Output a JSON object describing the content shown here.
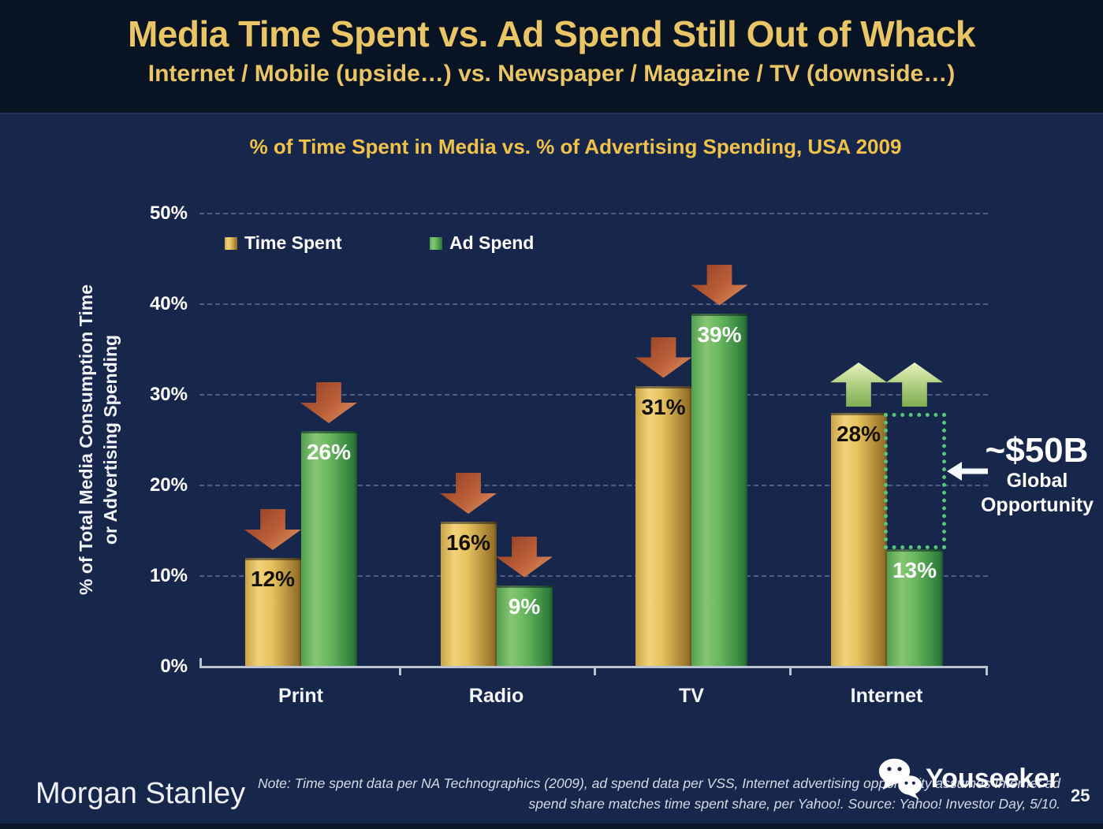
{
  "slide": {
    "title": "Media Time Spent vs. Ad Spend Still Out of Whack",
    "subtitle": "Internet / Mobile (upside…) vs. Newspaper / Magazine / TV (downside…)"
  },
  "footer": {
    "brand": "Morgan Stanley",
    "note_line1": "Note: Time spent data per NA Technographics (2009), ad spend data per VSS, Internet advertising opportunity assumes Internet ad",
    "note_line2": "spend share matches time spent share, per Yahoo!. Source: Yahoo! Investor Day, 5/10.",
    "watermark": "Youseeker",
    "page_number": "25"
  },
  "chart_data": {
    "type": "bar",
    "title": "% of Time Spent in Media vs. % of Advertising Spending, USA 2009",
    "ylabel_line1": "% of Total Media Consumption Time",
    "ylabel_line2": "or Advertising Spending",
    "categories": [
      "Print",
      "Radio",
      "TV",
      "Internet"
    ],
    "series": [
      {
        "name": "Time Spent",
        "color_key": "gold",
        "values": [
          12,
          16,
          31,
          28
        ]
      },
      {
        "name": "Ad Spend",
        "color_key": "green",
        "values": [
          26,
          9,
          39,
          13
        ]
      }
    ],
    "value_label_suffix": "%",
    "yticks": [
      0,
      10,
      20,
      30,
      40,
      50
    ],
    "ytick_suffix": "%",
    "ylim": [
      0,
      50
    ],
    "grid": "dashed-horizontal",
    "legend_position": "top-left-inside",
    "trend_arrows": [
      "down",
      "down",
      "down",
      "up"
    ],
    "annotation": {
      "value_label": "~$50B",
      "caption_line1": "Global",
      "caption_line2": "Opportunity",
      "box_category": "Internet",
      "box_from_percent": 13,
      "box_to_percent": 28
    }
  },
  "colors": {
    "slide_bg": "#17264b",
    "title_band_bg": "#081423",
    "title_text": "#e9c566",
    "chart_title_text": "#f0c24a",
    "gold_bar": "#e3bb52",
    "green_bar": "#55a853",
    "down_arrow": "#c46a3c",
    "up_arrow": "#a8c86e",
    "opportunity_box_border": "#54c878"
  }
}
